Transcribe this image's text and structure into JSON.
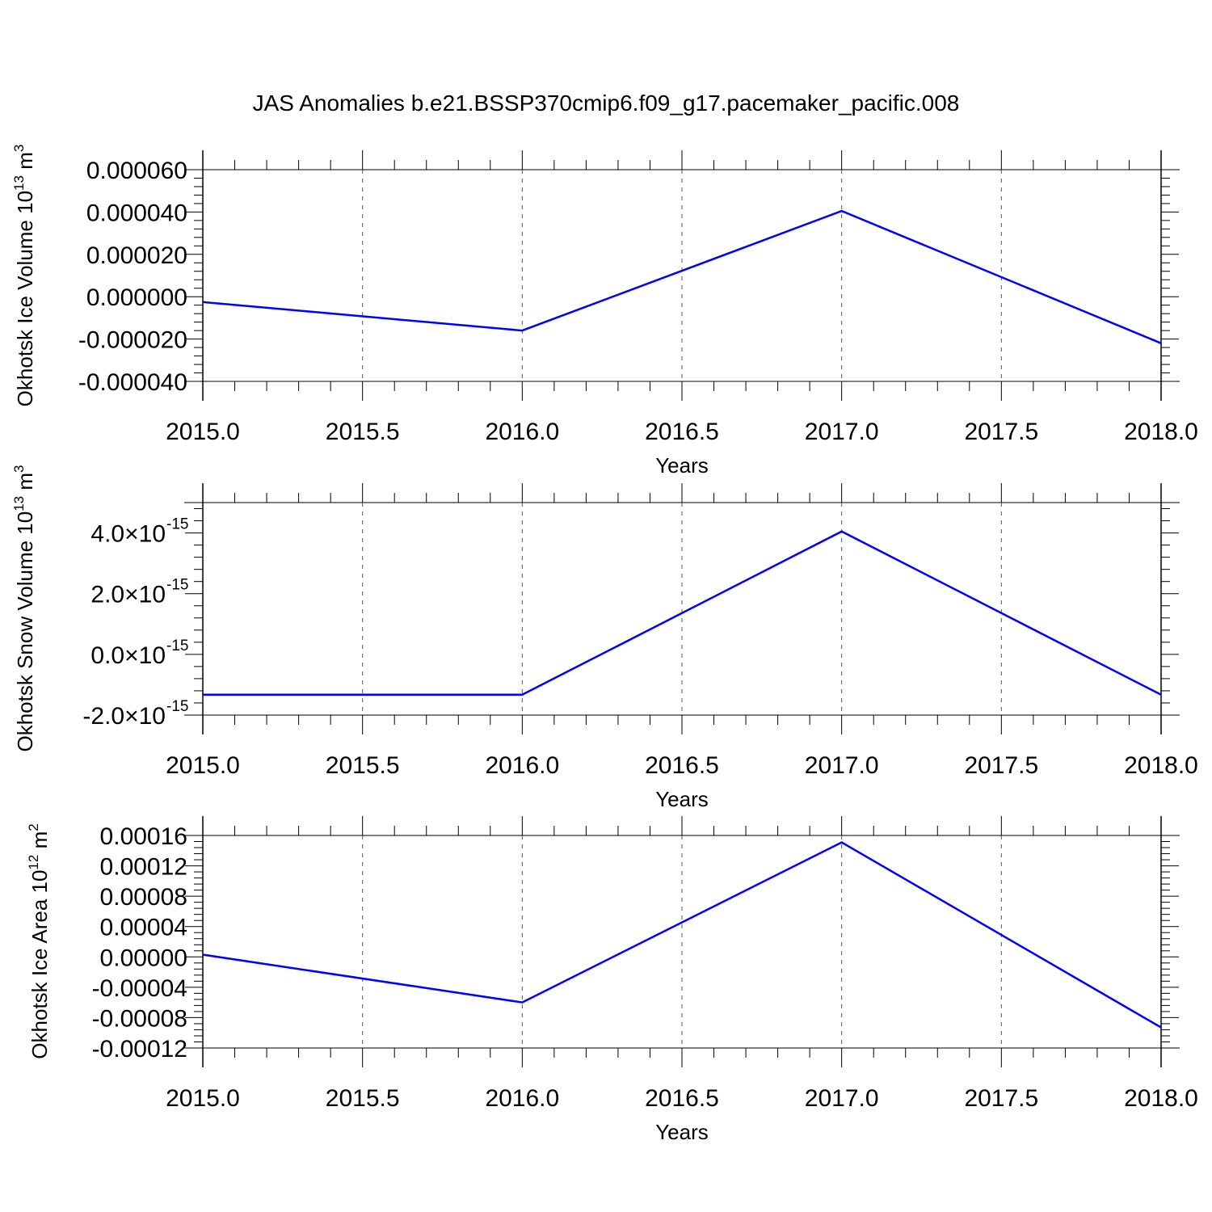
{
  "figure": {
    "title": "JAS Anomalies b.e21.BSSP370cmip6.f09_g17.pacemaker_pacific.008",
    "line_color": "#0000ff"
  },
  "chart_data": [
    {
      "type": "line",
      "ylabel": "Okhotsk Ice Volume 10",
      "ylabel_sup": "13",
      "ylabel_unit": " m",
      "ylabel_unit_sup": "3",
      "xlabel": "Years",
      "xlim": [
        2015.0,
        2018.0
      ],
      "ylim": [
        -4e-05,
        6e-05
      ],
      "x_ticks": [
        2015.0,
        2015.5,
        2016.0,
        2016.5,
        2017.0,
        2017.5,
        2018.0
      ],
      "x_tick_labels": [
        "2015.0",
        "2015.5",
        "2016.0",
        "2016.5",
        "2017.0",
        "2017.5",
        "2018.0"
      ],
      "y_ticks": [
        6e-05,
        4e-05,
        2e-05,
        0.0,
        -2e-05,
        -4e-05
      ],
      "y_tick_labels": [
        "0.000060",
        "0.000040",
        "0.000020",
        "0.000000",
        "-0.000020",
        "-0.000040"
      ],
      "grid": "vertical-dashed",
      "x": [
        2015,
        2016,
        2017,
        2018
      ],
      "series": [
        {
          "values": [
            -2.5e-06,
            -1.6e-05,
            4.05e-05,
            -2.2e-05
          ]
        }
      ]
    },
    {
      "type": "line",
      "ylabel": "Okhotsk Snow Volume 10",
      "ylabel_sup": "13",
      "ylabel_unit": " m",
      "ylabel_unit_sup": "3",
      "xlabel": "Years",
      "xlim": [
        2015.0,
        2018.0
      ],
      "ylim": [
        -2e-15,
        5e-15
      ],
      "x_ticks": [
        2015.0,
        2015.5,
        2016.0,
        2016.5,
        2017.0,
        2017.5,
        2018.0
      ],
      "x_tick_labels": [
        "2015.0",
        "2015.5",
        "2016.0",
        "2016.5",
        "2017.0",
        "2017.5",
        "2018.0"
      ],
      "y_ticks": [
        4e-15,
        2e-15,
        0.0,
        -2e-15
      ],
      "y_tick_labels": [
        "4.0",
        "2.0",
        "0.0",
        "-2.0"
      ],
      "y_tick_suffix": "×10",
      "y_tick_exp": "-15",
      "grid": "vertical-dashed",
      "x": [
        2015,
        2016,
        2017,
        2018
      ],
      "series": [
        {
          "values": [
            -1.33e-15,
            -1.33e-15,
            4.05e-15,
            -1.33e-15
          ]
        }
      ]
    },
    {
      "type": "line",
      "ylabel": "Okhotsk Ice Area 10",
      "ylabel_sup": "12",
      "ylabel_unit": " m",
      "ylabel_unit_sup": "2",
      "xlabel": "Years",
      "xlim": [
        2015.0,
        2018.0
      ],
      "ylim": [
        -0.00012,
        0.00016
      ],
      "x_ticks": [
        2015.0,
        2015.5,
        2016.0,
        2016.5,
        2017.0,
        2017.5,
        2018.0
      ],
      "x_tick_labels": [
        "2015.0",
        "2015.5",
        "2016.0",
        "2016.5",
        "2017.0",
        "2017.5",
        "2018.0"
      ],
      "y_ticks": [
        0.00016,
        0.00012,
        8e-05,
        4e-05,
        0.0,
        -4e-05,
        -8e-05,
        -0.00012
      ],
      "y_tick_labels": [
        "0.00016",
        "0.00012",
        "0.00008",
        "0.00004",
        "0.00000",
        "-0.00004",
        "-0.00008",
        "-0.00012"
      ],
      "grid": "vertical-dashed",
      "x": [
        2015,
        2016,
        2017,
        2018
      ],
      "series": [
        {
          "values": [
            3e-06,
            -6e-05,
            0.000151,
            -9.3e-05
          ]
        }
      ]
    }
  ]
}
